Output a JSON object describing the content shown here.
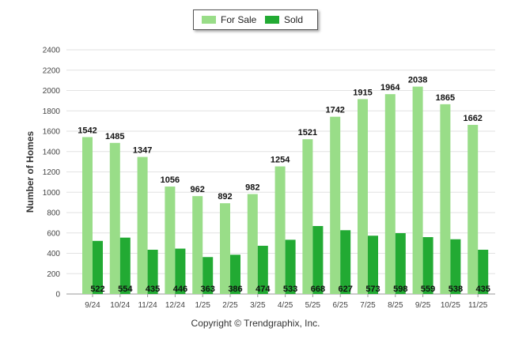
{
  "chart_data": {
    "type": "bar",
    "categories": [
      "9/24",
      "10/24",
      "11/24",
      "12/24",
      "1/25",
      "2/25",
      "3/25",
      "4/25",
      "5/25",
      "6/25",
      "7/25",
      "8/25",
      "9/25",
      "10/25",
      "11/25"
    ],
    "series": [
      {
        "name": "For Sale",
        "color": "#99dd88",
        "values": [
          1542,
          1485,
          1347,
          1056,
          962,
          892,
          982,
          1254,
          1521,
          1742,
          1915,
          1964,
          2038,
          1865,
          1662
        ]
      },
      {
        "name": "Sold",
        "color": "#22aa33",
        "values": [
          522,
          554,
          435,
          446,
          363,
          386,
          474,
          533,
          668,
          627,
          573,
          598,
          559,
          538,
          435
        ]
      }
    ],
    "ylabel": "Number of Homes",
    "xlabel": "",
    "ylim": [
      0,
      2400
    ],
    "yticks": [
      0,
      200,
      400,
      600,
      800,
      1000,
      1200,
      1400,
      1600,
      1800,
      2000,
      2200,
      2400
    ],
    "grid": true,
    "legend": "top-center"
  },
  "footer": "Copyright © Trendgraphix, Inc."
}
